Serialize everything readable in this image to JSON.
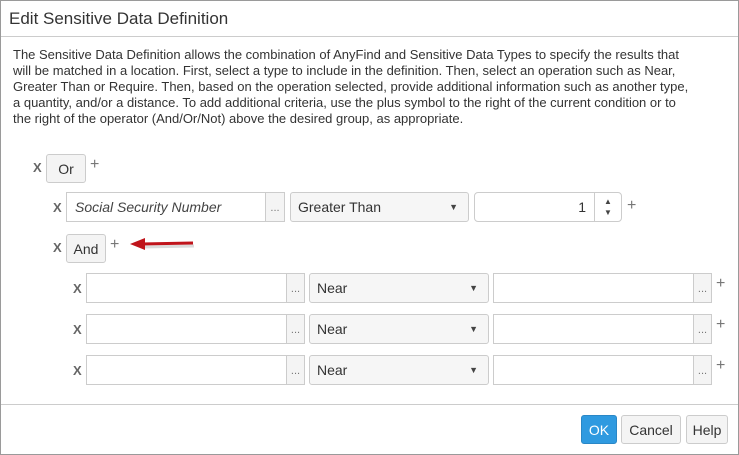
{
  "dialog": {
    "title": "Edit Sensitive Data Definition",
    "description": "The Sensitive Data Definition allows the combination of AnyFind and Sensitive Data Types to specify the results that will be matched in a location. First, select a type to include in the definition. Then, select an operation such as Near, Greater Than or Require. Then, based on the operation selected, provide additional information such as another type, a quantity, and/or a distance. To add additional criteria, use the plus symbol to the right of the current condition or to the right of the operator (And/Or/Not) above the desired group, as appropriate."
  },
  "remove_label": "X",
  "add_label": "+",
  "ellipsis": "...",
  "or_group": {
    "operator": "Or"
  },
  "condition1": {
    "type": "Social Security Number",
    "operation": "Greater Than",
    "quantity": "1"
  },
  "and_group": {
    "operator": "And",
    "rows": [
      {
        "type": "",
        "operation": "Near",
        "value": ""
      },
      {
        "type": "",
        "operation": "Near",
        "value": ""
      },
      {
        "type": "",
        "operation": "Near",
        "value": ""
      }
    ]
  },
  "annotation": {
    "arrow_color": "#c0141b"
  },
  "footer": {
    "ok": "OK",
    "cancel": "Cancel",
    "help": "Help",
    "ok_color": "#2f9ae0"
  }
}
